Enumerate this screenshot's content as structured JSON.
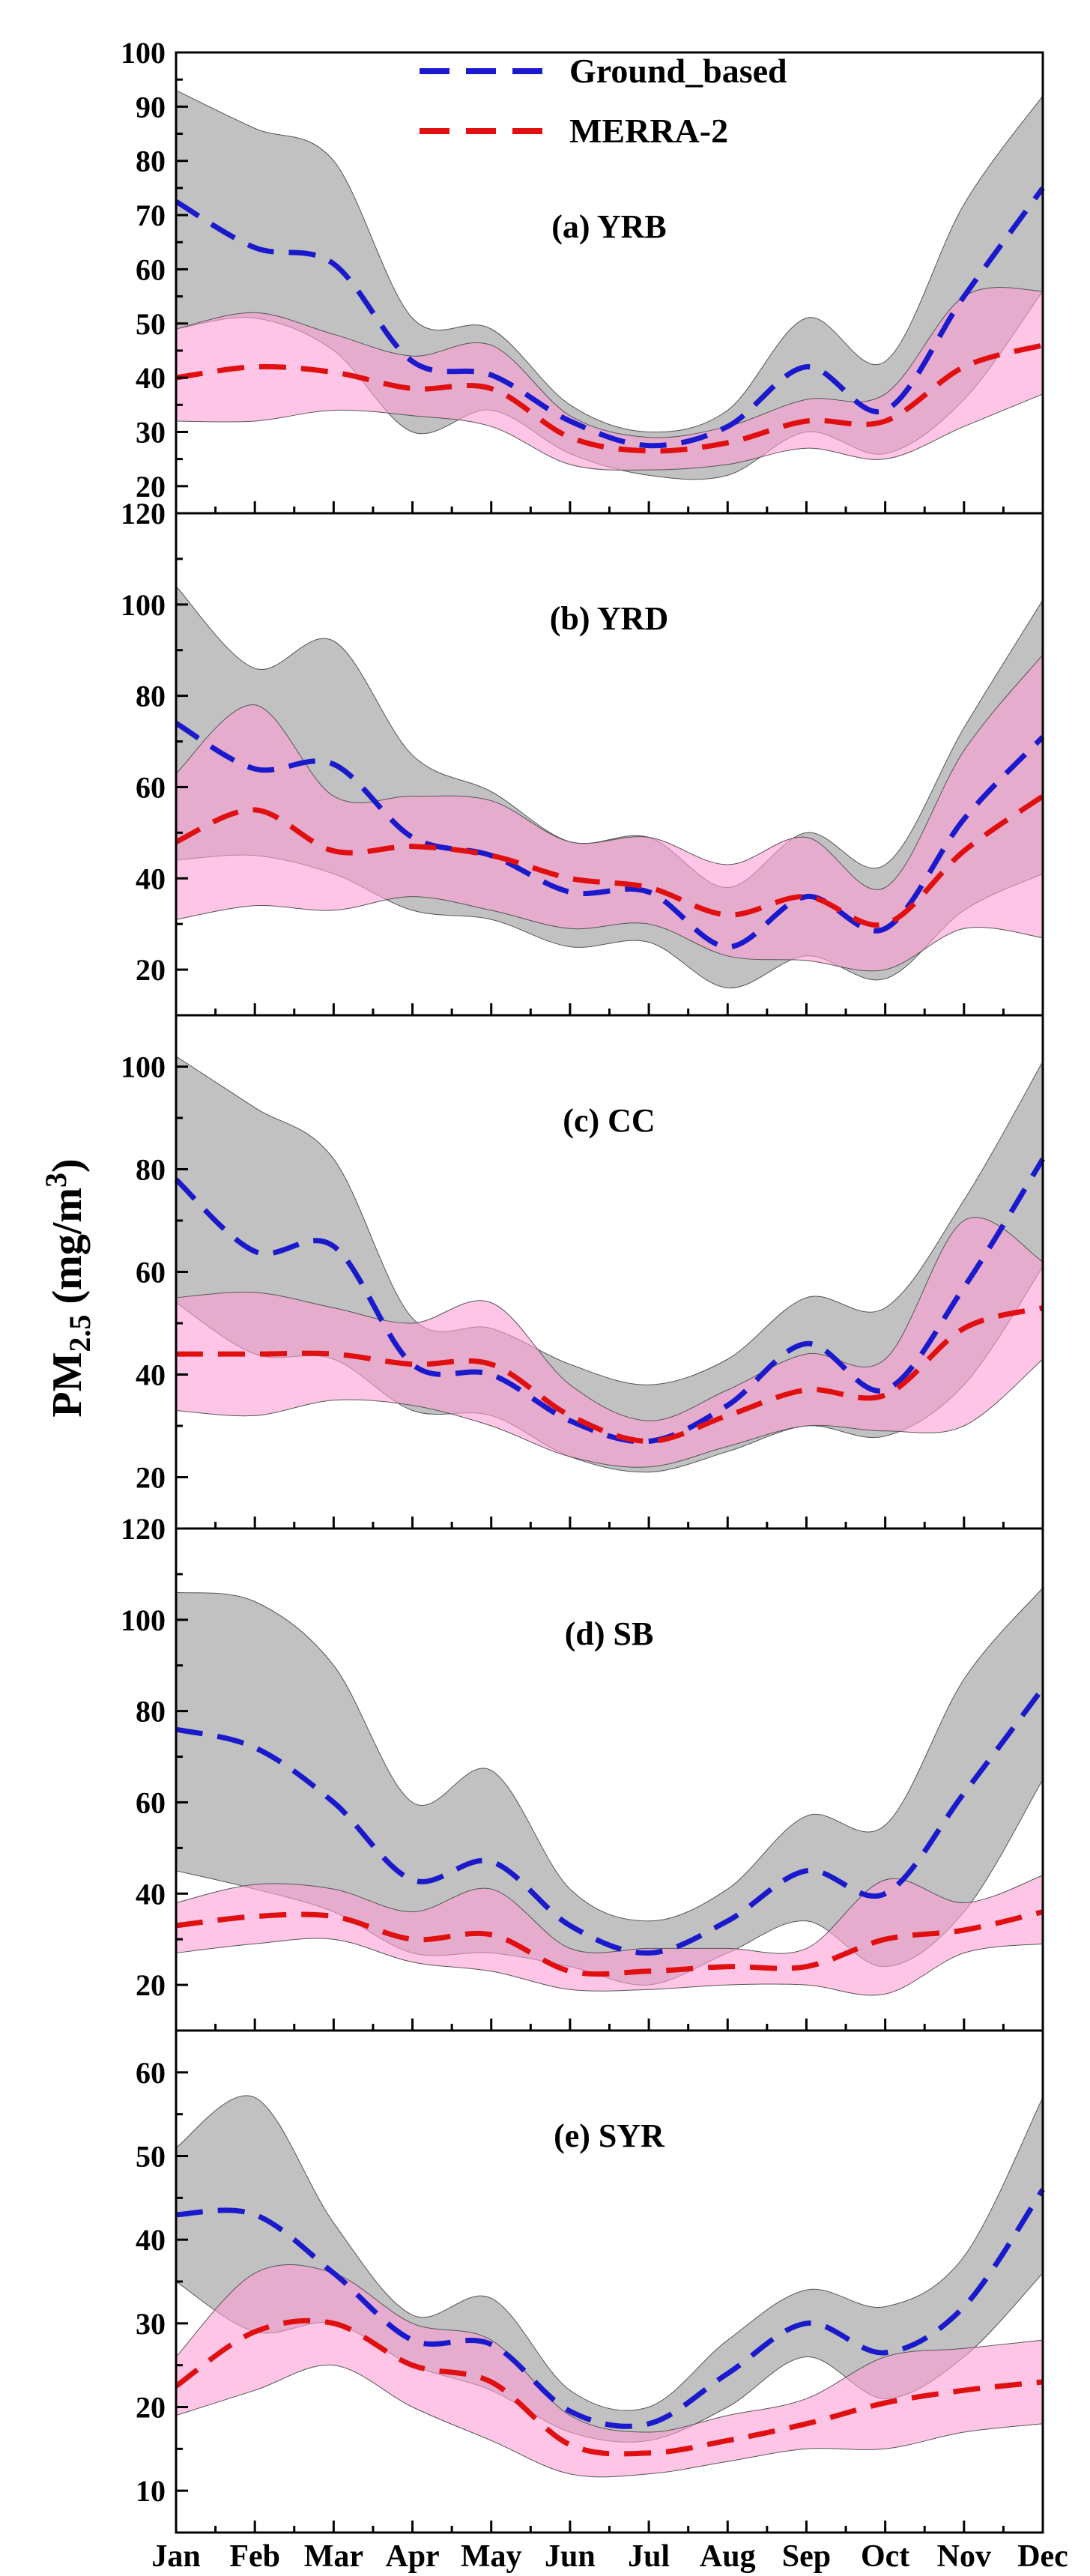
{
  "chart_data": {
    "type": "line",
    "ylabel": {
      "main": "PM",
      "sub": "2.5",
      "units_prefix": " (mg/m",
      "units_sup": "3",
      "units_suffix": ")"
    },
    "x": [
      "Jan",
      "Feb",
      "Mar",
      "Apr",
      "May",
      "Jun",
      "Jul",
      "Aug",
      "Sep",
      "Oct",
      "Nov",
      "Dec"
    ],
    "legend": {
      "position": "top",
      "entries": [
        {
          "name": "Ground_based",
          "color": "#1a1acc"
        },
        {
          "name": "MERRA-2",
          "color": "#e01010"
        }
      ]
    },
    "colors": {
      "ground_line": "#1a1acc",
      "merra_line": "#e01010",
      "ground_band": "#a9a9a9",
      "merra_band": "#ff9ed6"
    },
    "panels": [
      {
        "title": "(a) YRB",
        "ylim": [
          15,
          100
        ],
        "yticks": [
          20,
          30,
          40,
          50,
          60,
          70,
          80,
          90,
          100
        ],
        "series": [
          {
            "name": "Ground_based",
            "values": [
              72.5,
              64,
              61,
              43,
              40.5,
              32,
              27.5,
              31,
              42,
              34,
              55,
              75
            ],
            "upper": [
              93,
              86,
              80,
              51,
              49,
              35,
              30,
              34,
              51,
              43,
              72,
              92
            ],
            "lower": [
              49,
              51,
              45,
              30,
              34,
              26,
              22,
              22,
              30,
              26,
              36,
              56
            ]
          },
          {
            "name": "MERRA-2",
            "values": [
              40,
              42,
              41,
              38,
              38,
              29,
              26.5,
              28,
              32,
              32,
              42,
              46
            ],
            "upper": [
              49,
              52,
              48,
              44,
              46,
              33,
              29,
              31,
              36,
              37,
              55,
              56
            ],
            "lower": [
              32,
              32,
              34,
              33,
              31,
              24,
              23,
              24,
              27,
              25,
              31,
              37
            ]
          }
        ]
      },
      {
        "title": "(b) YRD",
        "ylim": [
          10,
          120
        ],
        "yticks": [
          20,
          40,
          60,
          80,
          100,
          120
        ],
        "series": [
          {
            "name": "Ground_based",
            "values": [
              74,
              64,
              65,
              49,
              45,
              37,
              37,
              25,
              36,
              29,
              53,
              71
            ],
            "upper": [
              104,
              86,
              92,
              67,
              59,
              48,
              49,
              38,
              50,
              43,
              73,
              101
            ],
            "lower": [
              44,
              45,
              41,
              33,
              31,
              25,
              26,
              16,
              23,
              18,
              33,
              41
            ]
          },
          {
            "name": "MERRA-2",
            "values": [
              48,
              55,
              46,
              47,
              45,
              40,
              38,
              32,
              36,
              30,
              46,
              58
            ],
            "upper": [
              63,
              78,
              58,
              58,
              57,
              48,
              49,
              43,
              49,
              38,
              68,
              89
            ],
            "lower": [
              31,
              34,
              33,
              36,
              33,
              29,
              30,
              23,
              22,
              20,
              29,
              27
            ]
          }
        ]
      },
      {
        "title": "(c) CC",
        "ylim": [
          10,
          110
        ],
        "yticks": [
          20,
          40,
          60,
          80,
          100
        ],
        "series": [
          {
            "name": "Ground_based",
            "values": [
              78,
              64,
              65,
              42,
              40,
              31,
              27,
              34,
              46,
              37,
              57,
              82
            ],
            "upper": [
              102,
              92,
              82,
              51,
              49,
              42,
              38,
              43,
              55,
              53,
              74,
              101
            ],
            "lower": [
              54,
              44,
              43,
              33,
              32,
              24,
              21,
              25,
              30,
              28,
              38,
              61
            ]
          },
          {
            "name": "MERRA-2",
            "values": [
              44,
              44,
              44,
              42,
              42,
              32,
              27,
              32,
              37,
              36,
              49,
              53
            ],
            "upper": [
              55,
              56,
              53,
              50,
              54,
              38,
              31,
              37,
              44,
              43,
              70,
              62
            ],
            "lower": [
              33,
              32,
              35,
              34,
              30,
              24,
              22,
              26,
              30,
              29,
              30,
              43
            ]
          }
        ]
      },
      {
        "title": "(d) SB",
        "ylim": [
          10,
          120
        ],
        "yticks": [
          20,
          40,
          60,
          80,
          100,
          120
        ],
        "series": [
          {
            "name": "Ground_based",
            "values": [
              76,
              72,
              60,
              43,
              47,
              33,
              27,
              34,
              45,
              40,
              62,
              85
            ],
            "upper": [
              106,
              104,
              90,
              60,
              67,
              41,
              34,
              41,
              57,
              55,
              87,
              107
            ],
            "lower": [
              45,
              41,
              36,
              27,
              27,
              24,
              20,
              27,
              34,
              24,
              36,
              65
            ]
          },
          {
            "name": "MERRA-2",
            "values": [
              33,
              35,
              35,
              30,
              31,
              23,
              23,
              24,
              24,
              30,
              32,
              36
            ],
            "upper": [
              38,
              42,
              41,
              36,
              41,
              28,
              28,
              28,
              28,
              43,
              38,
              44
            ],
            "lower": [
              27,
              29,
              30,
              25,
              23,
              19,
              19,
              20,
              20,
              18,
              27,
              29
            ]
          }
        ]
      },
      {
        "title": "(e) SYR",
        "ylim": [
          5,
          65
        ],
        "yticks": [
          10,
          20,
          30,
          40,
          50,
          60
        ],
        "series": [
          {
            "name": "Ground_based",
            "values": [
              43,
              43,
              36,
              28,
              27.5,
              19.5,
              18,
              24,
              30,
              26.5,
              32,
              46
            ],
            "upper": [
              51,
              57,
              42,
              31,
              33,
              22,
              20,
              28,
              34,
              32,
              38,
              57
            ],
            "lower": [
              35,
              29,
              30,
              25,
              22,
              17,
              16,
              20,
              26,
              21,
              26,
              36
            ]
          },
          {
            "name": "MERRA-2",
            "values": [
              22.5,
              29,
              30,
              25,
              23,
              15.5,
              14.5,
              16,
              18,
              20.5,
              22,
              23
            ],
            "upper": [
              26,
              36,
              36,
              30,
              28,
              19,
              17,
              19,
              21,
              26,
              27,
              28
            ],
            "lower": [
              19,
              22,
              25,
              20,
              16,
              12,
              12,
              13.5,
              15,
              15,
              17,
              18
            ]
          }
        ]
      }
    ]
  }
}
